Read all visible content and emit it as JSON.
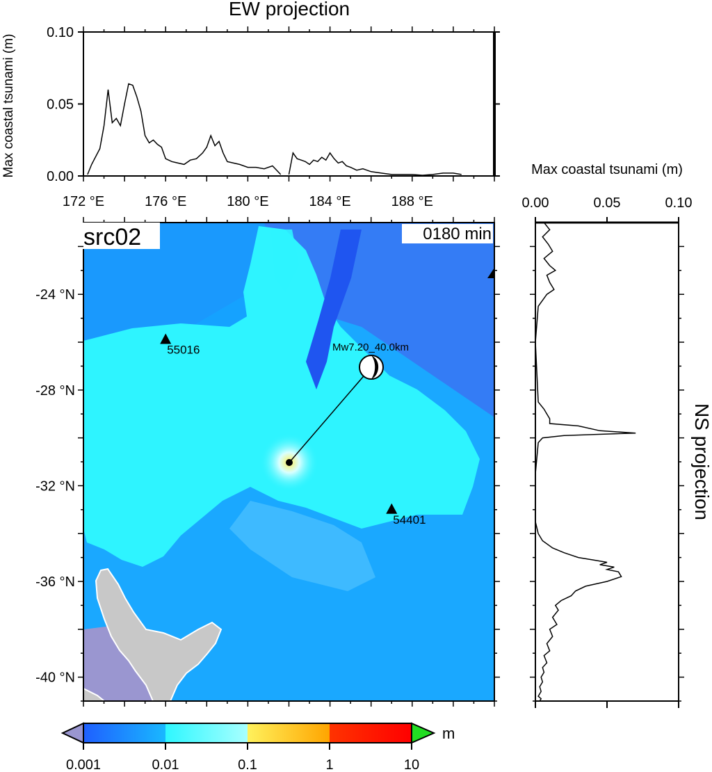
{
  "ew_panel": {
    "title": "EW projection",
    "ylabel": "Max coastal tsunami (m)",
    "yticks": [
      "0.00",
      "0.05",
      "0.10"
    ],
    "xticks": [
      "172 °E",
      "176 °E",
      "180 °E",
      "184 °E",
      "188 °E"
    ]
  },
  "ns_panel": {
    "title": "NS projection",
    "xlabel": "Max coastal tsunami (m)",
    "xticks": [
      "0.00",
      "0.05",
      "0.10"
    ]
  },
  "map": {
    "source_label": "src02",
    "time_label": "0180 min",
    "lat_ticks": [
      "-24 °N",
      "-28 °N",
      "-32 °N",
      "-36 °N",
      "-40 °N"
    ],
    "event_label": "Mw7.20_40.0km",
    "stations": [
      {
        "id": "55016",
        "lon": 176.0,
        "lat": -25.9
      },
      {
        "id": "54401",
        "lon": 187.0,
        "lat": -33.0
      }
    ],
    "epicenter": {
      "lon": 181.8,
      "lat": -30.8
    },
    "land_color": "#c8c8c8",
    "deep_color": "#2f6ef2",
    "shallow_color": "#2ef4ff"
  },
  "colorbar": {
    "unit": "m",
    "ticks": [
      "0.001",
      "0.01",
      "0.1",
      "1",
      "10"
    ],
    "colors": [
      "#1f5fff",
      "#19b8ff",
      "#2ef7ff",
      "#a8ffff",
      "#fff15c",
      "#ffa500",
      "#ff3300",
      "#ff0000"
    ],
    "under_color": "#9a96d0",
    "over_color": "#22dd22"
  },
  "chart_data": [
    {
      "type": "line",
      "name": "EW projection",
      "xlabel": "",
      "ylabel": "Max coastal tsunami (m)",
      "xlim": [
        172,
        192
      ],
      "ylim": [
        0,
        0.1
      ],
      "x": [
        172.2,
        172.4,
        172.8,
        173.0,
        173.2,
        173.4,
        173.6,
        173.8,
        174.0,
        174.2,
        174.4,
        174.6,
        174.8,
        175.0,
        175.2,
        175.4,
        175.6,
        175.8,
        176.0,
        176.3,
        176.6,
        176.9,
        177.2,
        177.5,
        177.8,
        178.0,
        178.2,
        178.4,
        178.6,
        178.8,
        179.0,
        179.3,
        179.6,
        180.0,
        180.4,
        180.8,
        181.2,
        181.6
      ],
      "y": [
        0.001,
        0.008,
        0.019,
        0.035,
        0.06,
        0.037,
        0.04,
        0.035,
        0.05,
        0.064,
        0.063,
        0.055,
        0.045,
        0.028,
        0.023,
        0.025,
        0.022,
        0.02,
        0.012,
        0.01,
        0.009,
        0.008,
        0.011,
        0.012,
        0.016,
        0.02,
        0.028,
        0.021,
        0.024,
        0.016,
        0.01,
        0.009,
        0.008,
        0.006,
        0.006,
        0.005,
        0.007,
        0.001
      ]
    },
    {
      "type": "line",
      "name": "EW projection (east segment)",
      "xlim": [
        172,
        192
      ],
      "ylim": [
        0,
        0.1
      ],
      "x": [
        182.0,
        182.2,
        182.4,
        182.6,
        182.8,
        183.0,
        183.2,
        183.4,
        183.6,
        183.8,
        184.0,
        184.2,
        184.4,
        184.6,
        184.8,
        185.0,
        185.3,
        185.6,
        186.0,
        186.5,
        187.0,
        187.5,
        188.0,
        188.5,
        189.0,
        189.5,
        190.0,
        190.4
      ],
      "y": [
        0.001,
        0.016,
        0.012,
        0.011,
        0.01,
        0.008,
        0.011,
        0.01,
        0.013,
        0.011,
        0.016,
        0.012,
        0.009,
        0.01,
        0.007,
        0.006,
        0.004,
        0.005,
        0.003,
        0.002,
        0.001,
        0.001,
        0.001,
        0.0005,
        0.001,
        0.002,
        0.002,
        0.001
      ]
    },
    {
      "type": "line",
      "name": "NS projection",
      "xlabel": "Max coastal tsunami (m)",
      "xlim": [
        0,
        0.1
      ],
      "ylim": [
        -41,
        -21
      ],
      "x": [
        0.006,
        0.01,
        0.005,
        0.009,
        0.012,
        0.006,
        0.01,
        0.014,
        0.008,
        0.01,
        0.013,
        0.008,
        0.002,
        0.0,
        0.002,
        0.006,
        0.008,
        0.01,
        0.01,
        0.03,
        0.045,
        0.07,
        0.02,
        0.005,
        0.002,
        0.0,
        0.0,
        0.002,
        0.005,
        0.012,
        0.02,
        0.03,
        0.04,
        0.05,
        0.045,
        0.055,
        0.05,
        0.058,
        0.06,
        0.05,
        0.035,
        0.028,
        0.025,
        0.018,
        0.014,
        0.016,
        0.012,
        0.015,
        0.01,
        0.012,
        0.008,
        0.01,
        0.006,
        0.008,
        0.005,
        0.006,
        0.004,
        0.005,
        0.003,
        0.004,
        0.002,
        0.004,
        0.003
      ],
      "y": [
        -21.0,
        -21.3,
        -21.6,
        -21.9,
        -22.2,
        -22.5,
        -22.8,
        -23.0,
        -23.2,
        -23.5,
        -23.8,
        -24.0,
        -24.5,
        -26.0,
        -28.5,
        -28.8,
        -29.0,
        -29.2,
        -29.4,
        -29.5,
        -29.7,
        -29.8,
        -29.9,
        -30.0,
        -30.2,
        -31.5,
        -33.5,
        -34.0,
        -34.3,
        -34.6,
        -34.8,
        -35.0,
        -35.1,
        -35.2,
        -35.3,
        -35.4,
        -35.5,
        -35.6,
        -35.8,
        -36.0,
        -36.2,
        -36.4,
        -36.6,
        -36.8,
        -37.0,
        -37.2,
        -37.5,
        -37.8,
        -38.0,
        -38.3,
        -38.6,
        -38.9,
        -39.1,
        -39.4,
        -39.6,
        -39.8,
        -40.0,
        -40.2,
        -40.4,
        -40.6,
        -40.8,
        -40.9,
        -41.0
      ]
    }
  ]
}
